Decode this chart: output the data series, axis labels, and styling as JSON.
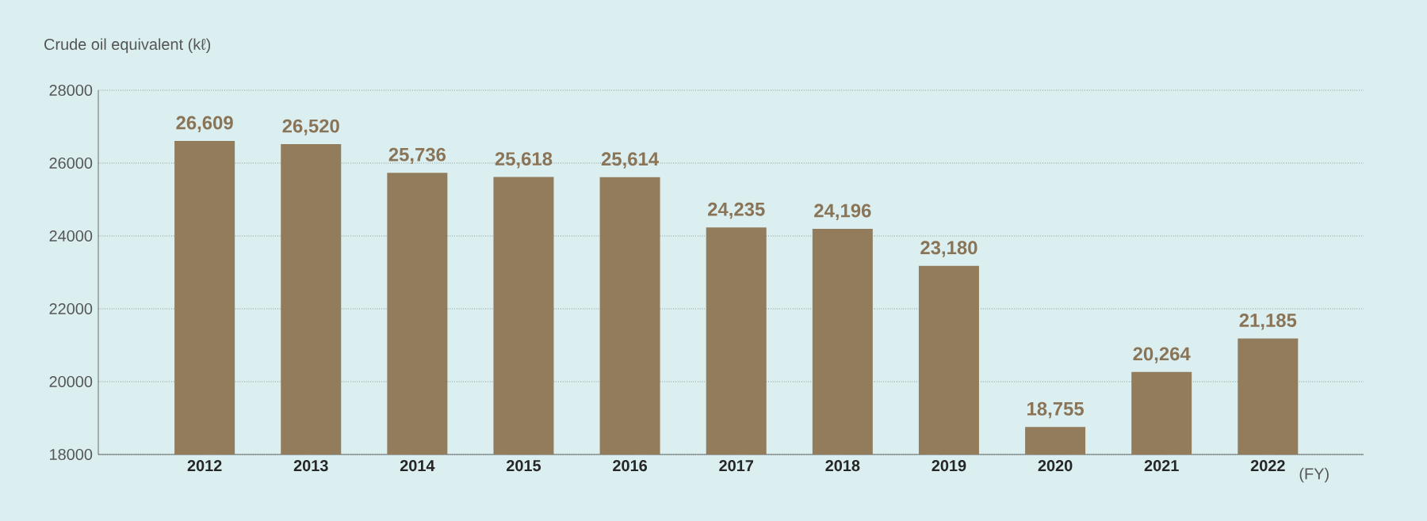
{
  "chart_data": {
    "type": "bar",
    "ylabel": "Crude oil equivalent (kℓ)",
    "xlabel": "(FY)",
    "categories": [
      "2012",
      "2013",
      "2014",
      "2015",
      "2016",
      "2017",
      "2018",
      "2019",
      "2020",
      "2021",
      "2022"
    ],
    "values": [
      26609,
      26520,
      25736,
      25618,
      25614,
      24235,
      24196,
      23180,
      18755,
      20264,
      21185
    ],
    "value_labels": [
      "26,609",
      "26,520",
      "25,736",
      "25,618",
      "25,614",
      "24,235",
      "24,196",
      "23,180",
      "18,755",
      "20,264",
      "21,185"
    ],
    "color": "#937c5c",
    "ylim": [
      18000,
      28000
    ],
    "yticks": [
      18000,
      20000,
      22000,
      24000,
      26000,
      28000
    ],
    "grid": "y"
  }
}
